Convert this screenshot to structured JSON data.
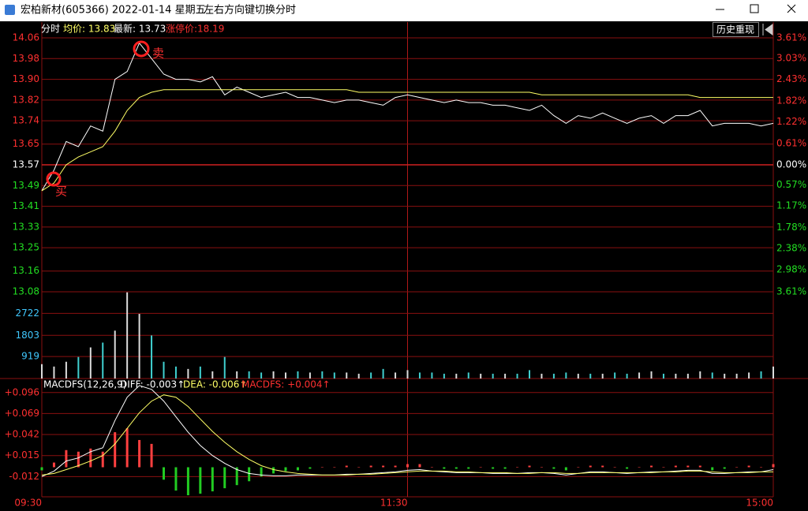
{
  "window": {
    "title": "宏柏新材(605366) 2022-01-14 星期五",
    "hint": "左右方向键切换分时"
  },
  "toolbar": {
    "button": "历史重现"
  },
  "chart_data": [
    {
      "type": "line",
      "info": [
        "分时",
        "均价: 13.83",
        "最新: 13.73",
        "涨停价:18.19"
      ],
      "annotations": [
        "买",
        "卖"
      ],
      "categories": [
        "09:30",
        null,
        null,
        null,
        null,
        null,
        null,
        null,
        null,
        null,
        null,
        null,
        null,
        null,
        null,
        null,
        null,
        null,
        null,
        null,
        null,
        null,
        null,
        null,
        null,
        null,
        null,
        null,
        null,
        null,
        "11:30",
        null,
        null,
        null,
        null,
        null,
        null,
        null,
        null,
        null,
        null,
        null,
        null,
        null,
        null,
        null,
        null,
        null,
        null,
        null,
        null,
        null,
        null,
        null,
        null,
        null,
        null,
        null,
        null,
        null,
        "15:00"
      ],
      "series": [
        {
          "name": "最新",
          "color": "#ffffff",
          "values": [
            13.47,
            13.55,
            13.66,
            13.64,
            13.72,
            13.7,
            13.9,
            13.93,
            14.04,
            13.98,
            13.92,
            13.9,
            13.9,
            13.89,
            13.91,
            13.84,
            13.87,
            13.85,
            13.83,
            13.84,
            13.85,
            13.83,
            13.83,
            13.82,
            13.81,
            13.82,
            13.82,
            13.81,
            13.8,
            13.83,
            13.84,
            13.83,
            13.82,
            13.81,
            13.82,
            13.81,
            13.81,
            13.8,
            13.8,
            13.79,
            13.78,
            13.8,
            13.76,
            13.73,
            13.76,
            13.75,
            13.77,
            13.75,
            13.73,
            13.75,
            13.76,
            13.73,
            13.76,
            13.76,
            13.78,
            13.72,
            13.73,
            13.73,
            13.73,
            13.72,
            13.73
          ]
        },
        {
          "name": "均价",
          "color": "#ffff66",
          "values": [
            13.47,
            13.5,
            13.57,
            13.6,
            13.62,
            13.64,
            13.7,
            13.78,
            13.83,
            13.85,
            13.86,
            13.86,
            13.86,
            13.86,
            13.86,
            13.86,
            13.86,
            13.86,
            13.86,
            13.86,
            13.86,
            13.86,
            13.86,
            13.86,
            13.86,
            13.86,
            13.85,
            13.85,
            13.85,
            13.85,
            13.85,
            13.85,
            13.85,
            13.85,
            13.85,
            13.85,
            13.85,
            13.85,
            13.85,
            13.85,
            13.85,
            13.84,
            13.84,
            13.84,
            13.84,
            13.84,
            13.84,
            13.84,
            13.84,
            13.84,
            13.84,
            13.84,
            13.84,
            13.84,
            13.83,
            13.83,
            13.83,
            13.83,
            13.83,
            13.83,
            13.83
          ]
        }
      ],
      "ylim": [
        13.08,
        14.06
      ],
      "yticks": [
        14.06,
        13.98,
        {
          "value": 13.9,
          "label": "13.90"
        },
        13.82,
        13.74,
        13.65,
        13.57,
        13.49,
        13.41,
        13.33,
        13.25,
        13.16,
        13.08
      ],
      "y2lim": [
        -3.61,
        3.61
      ],
      "y2ticks": [
        {
          "value": 3.61,
          "label": "3.61%"
        },
        {
          "value": 3.03,
          "label": "3.03%"
        },
        {
          "value": 2.43,
          "label": "2.43%"
        },
        {
          "value": 1.82,
          "label": "1.82%"
        },
        {
          "value": 1.22,
          "label": "1.22%"
        },
        {
          "value": 0.61,
          "label": "0.61%"
        },
        {
          "value": 0,
          "label": "0.00%"
        },
        {
          "value": -0.57,
          "label": "0.57%"
        },
        {
          "value": -1.17,
          "label": "1.17%"
        },
        {
          "value": -1.78,
          "label": "1.78%"
        },
        {
          "value": -2.38,
          "label": "2.38%"
        },
        {
          "value": -2.98,
          "label": "2.98%"
        },
        {
          "value": -3.61,
          "label": "3.61%"
        }
      ],
      "grid": true
    },
    {
      "type": "bar",
      "color": "#dcdcdc",
      "values": [
        600,
        500,
        700,
        900,
        1300,
        1500,
        2000,
        3600,
        2700,
        1800,
        700,
        500,
        400,
        500,
        300,
        900,
        300,
        300,
        250,
        300,
        250,
        300,
        250,
        300,
        250,
        250,
        200,
        250,
        400,
        250,
        350,
        250,
        250,
        200,
        200,
        250,
        200,
        200,
        200,
        200,
        350,
        200,
        200,
        250,
        200,
        200,
        200,
        250,
        200,
        250,
        300,
        200,
        200,
        200,
        300,
        250,
        200,
        200,
        250,
        300,
        500
      ],
      "ylim": [
        0,
        3624
      ],
      "yticks": [
        919,
        1803,
        2722
      ],
      "grid": true
    },
    {
      "type": "macd",
      "title": "MACDFS(12,26,9)",
      "series": [
        {
          "name": "DIFF: -0.003↑",
          "color": "#ffffff",
          "values": [
            -0.012,
            -0.005,
            0.008,
            0.012,
            0.02,
            0.025,
            0.06,
            0.09,
            0.105,
            0.1,
            0.085,
            0.065,
            0.045,
            0.028,
            0.015,
            0.005,
            -0.003,
            -0.008,
            -0.01,
            -0.011,
            -0.011,
            -0.01,
            -0.01,
            -0.01,
            -0.01,
            -0.009,
            -0.009,
            -0.008,
            -0.007,
            -0.006,
            -0.004,
            -0.003,
            -0.005,
            -0.006,
            -0.007,
            -0.007,
            -0.007,
            -0.008,
            -0.008,
            -0.008,
            -0.007,
            -0.007,
            -0.008,
            -0.01,
            -0.008,
            -0.006,
            -0.006,
            -0.007,
            -0.008,
            -0.007,
            -0.006,
            -0.006,
            -0.005,
            -0.004,
            -0.004,
            -0.008,
            -0.008,
            -0.007,
            -0.006,
            -0.006,
            -0.003
          ]
        },
        {
          "name": "DEA: -0.006↑",
          "color": "#ffff66",
          "values": [
            -0.01,
            -0.008,
            -0.003,
            0.002,
            0.008,
            0.015,
            0.03,
            0.05,
            0.07,
            0.085,
            0.093,
            0.09,
            0.078,
            0.062,
            0.046,
            0.032,
            0.02,
            0.01,
            0.002,
            -0.003,
            -0.006,
            -0.008,
            -0.009,
            -0.01,
            -0.01,
            -0.01,
            -0.009,
            -0.009,
            -0.008,
            -0.007,
            -0.006,
            -0.005,
            -0.005,
            -0.005,
            -0.006,
            -0.006,
            -0.007,
            -0.007,
            -0.007,
            -0.008,
            -0.008,
            -0.007,
            -0.007,
            -0.008,
            -0.008,
            -0.007,
            -0.007,
            -0.007,
            -0.007,
            -0.007,
            -0.007,
            -0.006,
            -0.006,
            -0.005,
            -0.005,
            -0.006,
            -0.007,
            -0.007,
            -0.007,
            -0.006,
            -0.006
          ]
        },
        {
          "name": "MACDFS: +0.004↑",
          "color": "#ff4040",
          "negative_color": "#22cc22",
          "values": [
            -0.004,
            0.006,
            0.022,
            0.02,
            0.024,
            0.02,
            0.045,
            0.05,
            0.035,
            0.03,
            -0.016,
            -0.03,
            -0.036,
            -0.034,
            -0.031,
            -0.027,
            -0.023,
            -0.018,
            -0.012,
            -0.008,
            -0.005,
            -0.004,
            -0.002,
            0,
            0,
            0.002,
            0,
            0.002,
            0.002,
            0.002,
            0.004,
            0.004,
            0,
            -0.002,
            -0.002,
            -0.002,
            0,
            -0.002,
            -0.002,
            0,
            0.002,
            0,
            -0.002,
            -0.004,
            0,
            0.002,
            0.002,
            0,
            -0.002,
            0,
            0.002,
            0,
            0.002,
            0.002,
            0.002,
            -0.004,
            -0.002,
            0,
            0.002,
            0,
            0.004
          ]
        }
      ],
      "ylim": [
        -0.038,
        0.114
      ],
      "yticks": [
        {
          "value": 0.096,
          "label": "+0.096"
        },
        {
          "value": 0.069,
          "label": "+0.069"
        },
        {
          "value": 0.042,
          "label": "+0.042"
        },
        {
          "value": 0.015,
          "label": "+0.015"
        },
        {
          "value": -0.012,
          "label": "-0.012"
        }
      ],
      "grid": true
    }
  ]
}
